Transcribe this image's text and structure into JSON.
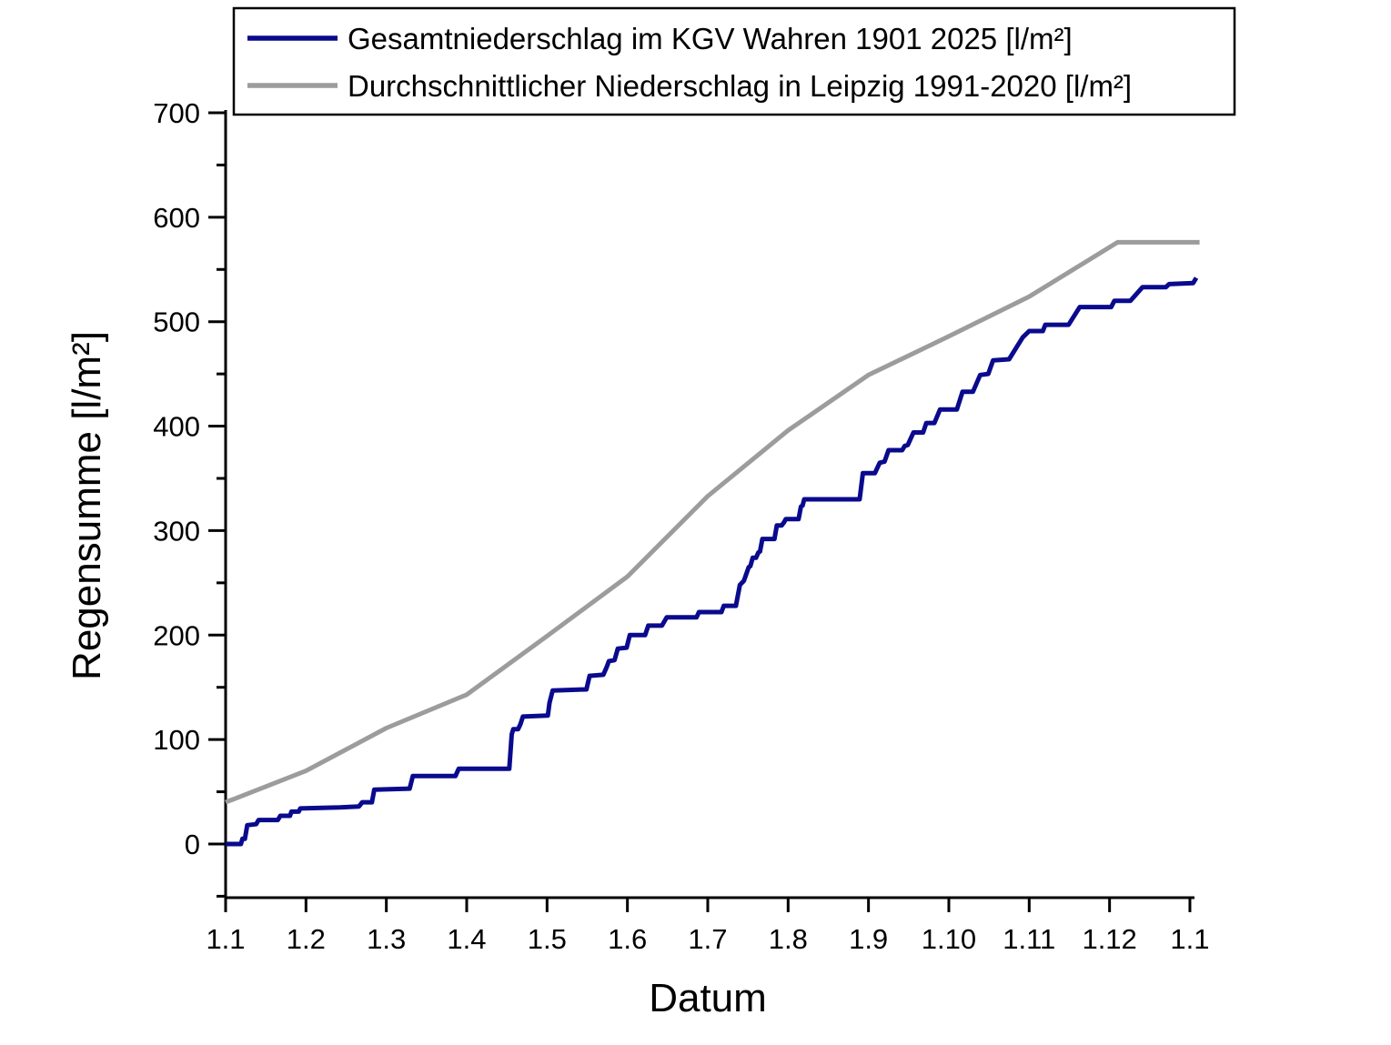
{
  "page": {
    "background": "#ffffff",
    "axis_color": "#000000"
  },
  "chart_data": {
    "type": "line",
    "title": "",
    "xlabel": "Datum",
    "ylabel": "Regensumme [l/m²]",
    "grid": false,
    "legend_position": "top",
    "x_axis": {
      "tick_labels": [
        "1.1",
        "1.2",
        "1.3",
        "1.4",
        "1.5",
        "1.6",
        "1.7",
        "1.8",
        "1.9",
        "1.10",
        "1.11",
        "1.12",
        "1.1"
      ],
      "range_months": [
        0,
        12.14
      ]
    },
    "y_axis": {
      "major_ticks": [
        0,
        100,
        200,
        300,
        400,
        500,
        600,
        700
      ],
      "minor_ticks": [
        -50,
        50,
        150,
        250,
        350,
        450,
        550,
        650
      ],
      "range": [
        -52,
        700
      ],
      "unit": "l/m²"
    },
    "series": [
      {
        "name": "Gesamtniederschlag im KGV Wahren 1901 2025 [l/m²]",
        "color": "#0a0a8e",
        "style": "step-cumulative",
        "points": [
          [
            0,
            0
          ],
          [
            0.19,
            0
          ],
          [
            0.21,
            5
          ],
          [
            0.24,
            5
          ],
          [
            0.27,
            18
          ],
          [
            0.38,
            19
          ],
          [
            0.41,
            23
          ],
          [
            0.65,
            23
          ],
          [
            0.68,
            27
          ],
          [
            0.8,
            27
          ],
          [
            0.82,
            31
          ],
          [
            0.91,
            31
          ],
          [
            0.93,
            34
          ],
          [
            1.42,
            35
          ],
          [
            1.66,
            36
          ],
          [
            1.7,
            40
          ],
          [
            1.82,
            40
          ],
          [
            1.85,
            52
          ],
          [
            2.29,
            53
          ],
          [
            2.33,
            65
          ],
          [
            2.86,
            65
          ],
          [
            2.9,
            72
          ],
          [
            3.53,
            72
          ],
          [
            3.56,
            105
          ],
          [
            3.58,
            110
          ],
          [
            3.64,
            110
          ],
          [
            3.67,
            115
          ],
          [
            3.7,
            122
          ],
          [
            4.01,
            123
          ],
          [
            4.03,
            135
          ],
          [
            4.07,
            147
          ],
          [
            4.49,
            148
          ],
          [
            4.53,
            161
          ],
          [
            4.7,
            162
          ],
          [
            4.74,
            169
          ],
          [
            4.77,
            175
          ],
          [
            4.84,
            176
          ],
          [
            4.88,
            187
          ],
          [
            4.99,
            188
          ],
          [
            5.03,
            200
          ],
          [
            5.22,
            200
          ],
          [
            5.26,
            209
          ],
          [
            5.43,
            209
          ],
          [
            5.49,
            217
          ],
          [
            5.86,
            217
          ],
          [
            5.89,
            222
          ],
          [
            6.17,
            222
          ],
          [
            6.2,
            228
          ],
          [
            6.35,
            228
          ],
          [
            6.4,
            248
          ],
          [
            6.45,
            252
          ],
          [
            6.51,
            265
          ],
          [
            6.53,
            266
          ],
          [
            6.56,
            274
          ],
          [
            6.6,
            274
          ],
          [
            6.63,
            279
          ],
          [
            6.65,
            280
          ],
          [
            6.68,
            292
          ],
          [
            6.83,
            292
          ],
          [
            6.86,
            305
          ],
          [
            6.92,
            305
          ],
          [
            6.95,
            308
          ],
          [
            6.97,
            311
          ],
          [
            7.13,
            311
          ],
          [
            7.16,
            323
          ],
          [
            7.18,
            324
          ],
          [
            7.2,
            330
          ],
          [
            7.89,
            330
          ],
          [
            7.93,
            355
          ],
          [
            8.08,
            355
          ],
          [
            8.14,
            365
          ],
          [
            8.2,
            366
          ],
          [
            8.25,
            377
          ],
          [
            8.42,
            377
          ],
          [
            8.45,
            381
          ],
          [
            8.49,
            382
          ],
          [
            8.56,
            394
          ],
          [
            8.68,
            394
          ],
          [
            8.72,
            403
          ],
          [
            8.82,
            403
          ],
          [
            8.89,
            416
          ],
          [
            9.1,
            416
          ],
          [
            9.17,
            433
          ],
          [
            9.3,
            433
          ],
          [
            9.39,
            449
          ],
          [
            9.49,
            450
          ],
          [
            9.55,
            463
          ],
          [
            9.75,
            464
          ],
          [
            9.92,
            485
          ],
          [
            10.0,
            491
          ],
          [
            10.17,
            491
          ],
          [
            10.2,
            497
          ],
          [
            10.49,
            497
          ],
          [
            10.63,
            514
          ],
          [
            11.02,
            514
          ],
          [
            11.06,
            520
          ],
          [
            11.26,
            520
          ],
          [
            11.41,
            533
          ],
          [
            11.7,
            533
          ],
          [
            11.74,
            536
          ],
          [
            12.04,
            537
          ],
          [
            12.08,
            542
          ]
        ]
      },
      {
        "name": "Durchschnittlicher Niederschlag in Leipzig 1991-2020 [l/m²]",
        "color": "#9c9c9c",
        "style": "monthly-cumulative",
        "points": [
          [
            0,
            40
          ],
          [
            1,
            70
          ],
          [
            2,
            111
          ],
          [
            3,
            143
          ],
          [
            4,
            199
          ],
          [
            5,
            256
          ],
          [
            6,
            333
          ],
          [
            7,
            396
          ],
          [
            8,
            449
          ],
          [
            9,
            486
          ],
          [
            10,
            524
          ],
          [
            11.1,
            576
          ],
          [
            12.12,
            576
          ]
        ]
      }
    ]
  }
}
